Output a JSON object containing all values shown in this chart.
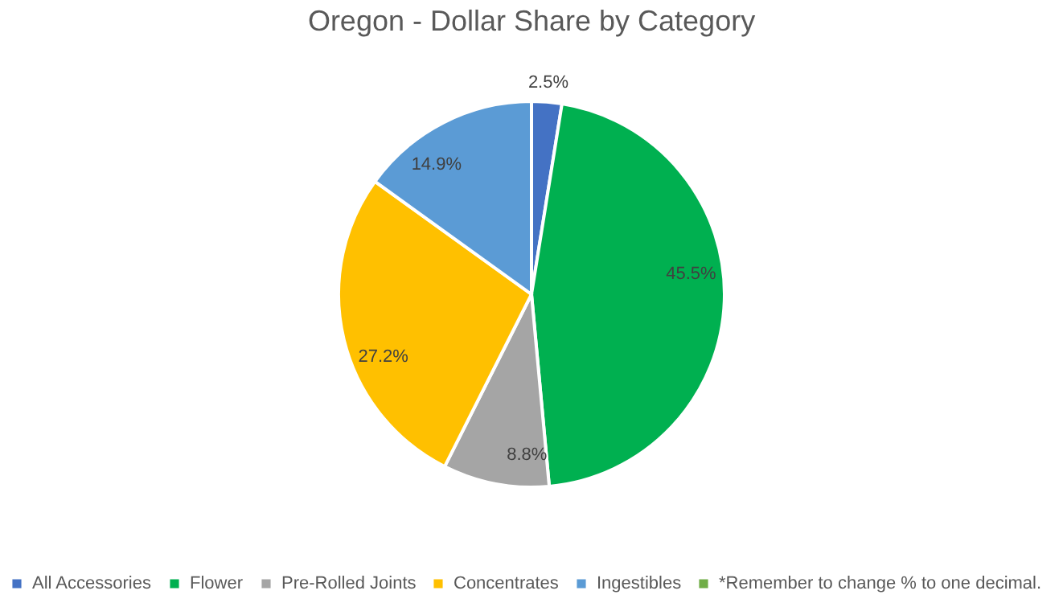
{
  "chart_data": {
    "type": "pie",
    "title": "Oregon - Dollar Share by Category",
    "categories": [
      "All Accessories",
      "Flower",
      "Pre-Rolled Joints",
      "Concentrates",
      "Ingestibles",
      "*Remember to change % to one decimal."
    ],
    "values": [
      2.5,
      45.5,
      8.8,
      27.2,
      14.9,
      0
    ],
    "value_labels": [
      "2.5%",
      "45.5%",
      "8.8%",
      "27.2%",
      "14.9%",
      null
    ],
    "colors": [
      "#4472c4",
      "#00b050",
      "#a5a5a5",
      "#ffc000",
      "#5b9bd5",
      "#70ad47"
    ],
    "legend": "bottom"
  }
}
